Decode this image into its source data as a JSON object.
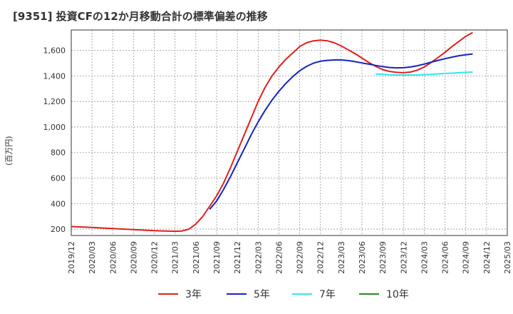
{
  "title": "[9351]  投資CFの12か月移動合計の標準偏差の推移",
  "chart_data": {
    "type": "line",
    "title": "[9351]  投資CFの12か月移動合計の標準偏差の推移",
    "ylabel": "(百万円)",
    "xlabel": "",
    "ylim": [
      150,
      1760
    ],
    "yticks": [
      200,
      400,
      600,
      800,
      1000,
      1200,
      1400,
      1600
    ],
    "ytick_labels": [
      "200",
      "400",
      "600",
      "800",
      "1,000",
      "1,200",
      "1,400",
      "1,600"
    ],
    "xticks": [
      "2019/12",
      "2020/03",
      "2020/06",
      "2020/09",
      "2020/12",
      "2021/03",
      "2021/06",
      "2021/09",
      "2021/12",
      "2022/03",
      "2022/06",
      "2022/09",
      "2022/12",
      "2023/03",
      "2023/06",
      "2023/09",
      "2023/12",
      "2024/03",
      "2024/06",
      "2024/09",
      "2024/12",
      "2025/03"
    ],
    "grid": true,
    "legend_position": "bottom",
    "series": [
      {
        "name": "3年",
        "color": "#e0201b",
        "points": [
          [
            "2019/12",
            220
          ],
          [
            "2020/03",
            213
          ],
          [
            "2020/06",
            205
          ],
          [
            "2020/09",
            196
          ],
          [
            "2020/12",
            188
          ],
          [
            "2021/03",
            183
          ],
          [
            "2021/04",
            185
          ],
          [
            "2021/05",
            200
          ],
          [
            "2021/06",
            240
          ],
          [
            "2021/07",
            300
          ],
          [
            "2021/08",
            380
          ],
          [
            "2021/09",
            460
          ],
          [
            "2021/10",
            560
          ],
          [
            "2021/11",
            680
          ],
          [
            "2021/12",
            810
          ],
          [
            "2022/01",
            940
          ],
          [
            "2022/02",
            1070
          ],
          [
            "2022/03",
            1200
          ],
          [
            "2022/04",
            1310
          ],
          [
            "2022/05",
            1400
          ],
          [
            "2022/06",
            1470
          ],
          [
            "2022/07",
            1530
          ],
          [
            "2022/08",
            1580
          ],
          [
            "2022/09",
            1630
          ],
          [
            "2022/10",
            1660
          ],
          [
            "2022/11",
            1675
          ],
          [
            "2022/12",
            1680
          ],
          [
            "2023/01",
            1675
          ],
          [
            "2023/02",
            1660
          ],
          [
            "2023/03",
            1635
          ],
          [
            "2023/04",
            1605
          ],
          [
            "2023/05",
            1575
          ],
          [
            "2023/06",
            1540
          ],
          [
            "2023/07",
            1505
          ],
          [
            "2023/08",
            1475
          ],
          [
            "2023/09",
            1450
          ],
          [
            "2023/10",
            1435
          ],
          [
            "2023/11",
            1428
          ],
          [
            "2023/12",
            1425
          ],
          [
            "2024/01",
            1430
          ],
          [
            "2024/02",
            1445
          ],
          [
            "2024/03",
            1470
          ],
          [
            "2024/04",
            1505
          ],
          [
            "2024/05",
            1545
          ],
          [
            "2024/06",
            1585
          ],
          [
            "2024/07",
            1630
          ],
          [
            "2024/08",
            1670
          ],
          [
            "2024/09",
            1710
          ],
          [
            "2024/10",
            1740
          ]
        ]
      },
      {
        "name": "5年",
        "color": "#1524c0",
        "points": [
          [
            "2021/08",
            355
          ],
          [
            "2021/09",
            420
          ],
          [
            "2021/10",
            510
          ],
          [
            "2021/11",
            610
          ],
          [
            "2021/12",
            720
          ],
          [
            "2022/01",
            830
          ],
          [
            "2022/02",
            940
          ],
          [
            "2022/03",
            1040
          ],
          [
            "2022/04",
            1130
          ],
          [
            "2022/05",
            1210
          ],
          [
            "2022/06",
            1280
          ],
          [
            "2022/07",
            1340
          ],
          [
            "2022/08",
            1395
          ],
          [
            "2022/09",
            1440
          ],
          [
            "2022/10",
            1475
          ],
          [
            "2022/11",
            1500
          ],
          [
            "2022/12",
            1515
          ],
          [
            "2023/01",
            1522
          ],
          [
            "2023/02",
            1525
          ],
          [
            "2023/03",
            1525
          ],
          [
            "2023/04",
            1520
          ],
          [
            "2023/05",
            1512
          ],
          [
            "2023/06",
            1502
          ],
          [
            "2023/07",
            1492
          ],
          [
            "2023/08",
            1482
          ],
          [
            "2023/09",
            1473
          ],
          [
            "2023/10",
            1466
          ],
          [
            "2023/11",
            1463
          ],
          [
            "2023/12",
            1464
          ],
          [
            "2024/01",
            1470
          ],
          [
            "2024/02",
            1480
          ],
          [
            "2024/03",
            1493
          ],
          [
            "2024/04",
            1508
          ],
          [
            "2024/05",
            1522
          ],
          [
            "2024/06",
            1535
          ],
          [
            "2024/07",
            1547
          ],
          [
            "2024/08",
            1558
          ],
          [
            "2024/09",
            1566
          ],
          [
            "2024/10",
            1572
          ]
        ]
      },
      {
        "name": "7年",
        "color": "#33e6ea",
        "points": [
          [
            "2023/08",
            1415
          ],
          [
            "2023/09",
            1412
          ],
          [
            "2023/10",
            1410
          ],
          [
            "2023/11",
            1408
          ],
          [
            "2023/12",
            1407
          ],
          [
            "2024/01",
            1407
          ],
          [
            "2024/02",
            1408
          ],
          [
            "2024/03",
            1410
          ],
          [
            "2024/04",
            1413
          ],
          [
            "2024/05",
            1416
          ],
          [
            "2024/06",
            1419
          ],
          [
            "2024/07",
            1422
          ],
          [
            "2024/08",
            1425
          ],
          [
            "2024/09",
            1428
          ],
          [
            "2024/10",
            1430
          ]
        ]
      },
      {
        "name": "10年",
        "color": "#2a8a1f",
        "points": []
      }
    ]
  }
}
